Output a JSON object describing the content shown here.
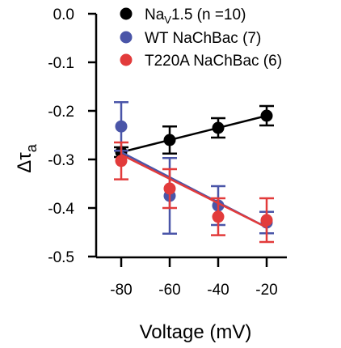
{
  "chart_data": {
    "type": "scatter",
    "xlabel": "Voltage (mV)",
    "ylabel": {
      "main": "Δτ",
      "sub": "a"
    },
    "xlim": [
      -90,
      -15
    ],
    "ylim": [
      -0.5,
      0.0
    ],
    "xticks": [
      -80,
      -60,
      -40,
      -20
    ],
    "yticks": [
      0.0,
      -0.1,
      -0.2,
      -0.3,
      -0.4,
      -0.5
    ],
    "xtick_labels": [
      "-80",
      "-60",
      "-40",
      "-20"
    ],
    "ytick_labels": [
      "0.0",
      "-0.1",
      "-0.2",
      "-0.3",
      "-0.4",
      "-0.5"
    ],
    "grid": false,
    "legend_position": "top-right",
    "series": [
      {
        "name": "Nav1.5 (n =10)",
        "legend": {
          "pre": "Na",
          "sub": "V",
          "post": "1.5 (n =10)"
        },
        "color": "#000000",
        "x": [
          -80,
          -60,
          -40,
          -20
        ],
        "y": [
          -0.285,
          -0.26,
          -0.235,
          -0.21
        ],
        "err": [
          0.01,
          0.028,
          0.02,
          0.02
        ],
        "fit": {
          "x": [
            -80,
            -20
          ],
          "y": [
            -0.285,
            -0.21
          ]
        }
      },
      {
        "name": "WT NaChBac (7)",
        "color": "#4a55a8",
        "x": [
          -80,
          -60,
          -40,
          -20
        ],
        "y": [
          -0.232,
          -0.375,
          -0.395,
          -0.43
        ],
        "err": [
          0.05,
          0.078,
          0.04,
          0.022
        ],
        "fit": {
          "x": [
            -80,
            -20
          ],
          "y": [
            -0.285,
            -0.44
          ]
        }
      },
      {
        "name": "T220A NaChBac (6)",
        "color": "#e23b3b",
        "x": [
          -80,
          -60,
          -40,
          -20
        ],
        "y": [
          -0.303,
          -0.36,
          -0.418,
          -0.425
        ],
        "err": [
          0.038,
          0.04,
          0.038,
          0.045
        ],
        "fit": {
          "x": [
            -80,
            -20
          ],
          "y": [
            -0.29,
            -0.44
          ]
        }
      }
    ]
  }
}
